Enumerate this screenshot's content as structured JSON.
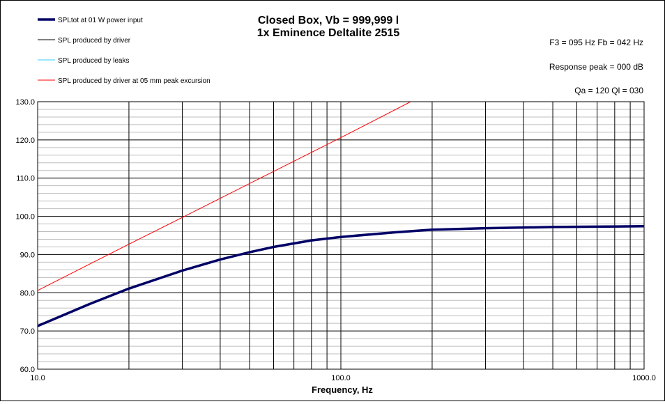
{
  "chart_data": {
    "type": "line",
    "title": "Closed Box, Vb = 999,999 l",
    "subtitle": "1x Eminence Deltalite 2515",
    "xlabel": "Frequency, Hz",
    "ylabel": "",
    "x_scale": "log",
    "xlim": [
      10,
      1000
    ],
    "ylim": [
      60,
      130
    ],
    "x_ticks": [
      "10.0",
      "100.0",
      "1000.0"
    ],
    "y_ticks": [
      "60.0",
      "70.0",
      "80.0",
      "90.0",
      "100.0",
      "110.0",
      "120.0",
      "130.0"
    ],
    "grid": true,
    "legend_position": "top-left",
    "info": {
      "f3_fb": "F3 = 095 Hz  Fb = 042 Hz",
      "response_peak": "Response  peak = 000 dB",
      "qa_ql": "Qa = 120  Ql = 030"
    },
    "series": [
      {
        "name": "SPLtot at 01 W power input",
        "color": "#000066",
        "x": [
          10,
          15,
          20,
          30,
          40,
          50,
          60,
          80,
          100,
          150,
          200,
          300,
          500,
          700,
          1000
        ],
        "values": [
          71.3,
          77.2,
          81.1,
          85.8,
          88.7,
          90.6,
          92.0,
          93.7,
          94.6,
          95.8,
          96.5,
          96.9,
          97.2,
          97.3,
          97.4
        ]
      },
      {
        "name": "SPL produced by driver",
        "color": "#000000",
        "x": [],
        "values": []
      },
      {
        "name": "SPL produced by leaks",
        "color": "#33CCFF",
        "x": [],
        "values": []
      },
      {
        "name": "SPL produced by driver at 05 mm peak excursion",
        "color": "#FF0000",
        "x": [
          10,
          20,
          30,
          50,
          100,
          170
        ],
        "values": [
          80.6,
          92.7,
          99.7,
          108.6,
          120.6,
          130.0
        ]
      }
    ]
  }
}
